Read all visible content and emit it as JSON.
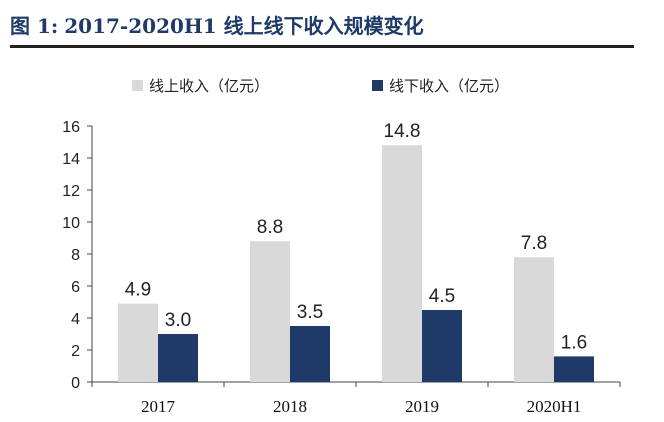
{
  "figure": {
    "number": "图 1:",
    "title": "2017-2020H1 线上线下收入规模变化"
  },
  "chart_data": {
    "type": "bar",
    "categories": [
      "2017",
      "2018",
      "2019",
      "2020H1"
    ],
    "series": [
      {
        "name": "线上收入（亿元）",
        "values": [
          4.9,
          8.8,
          14.8,
          7.8
        ],
        "color": "#d9d9d9"
      },
      {
        "name": "线下收入（亿元）",
        "values": [
          3.0,
          3.5,
          4.5,
          1.6
        ],
        "color": "#1f3a68"
      }
    ],
    "data_labels": [
      [
        "4.9",
        "8.8",
        "14.8",
        "7.8"
      ],
      [
        "3.0",
        "3.5",
        "4.5",
        "1.6"
      ]
    ],
    "yticks": [
      "0",
      "2",
      "4",
      "6",
      "8",
      "10",
      "12",
      "14",
      "16"
    ],
    "ylim": [
      0,
      16
    ],
    "grid": false,
    "legend_position": "top"
  }
}
